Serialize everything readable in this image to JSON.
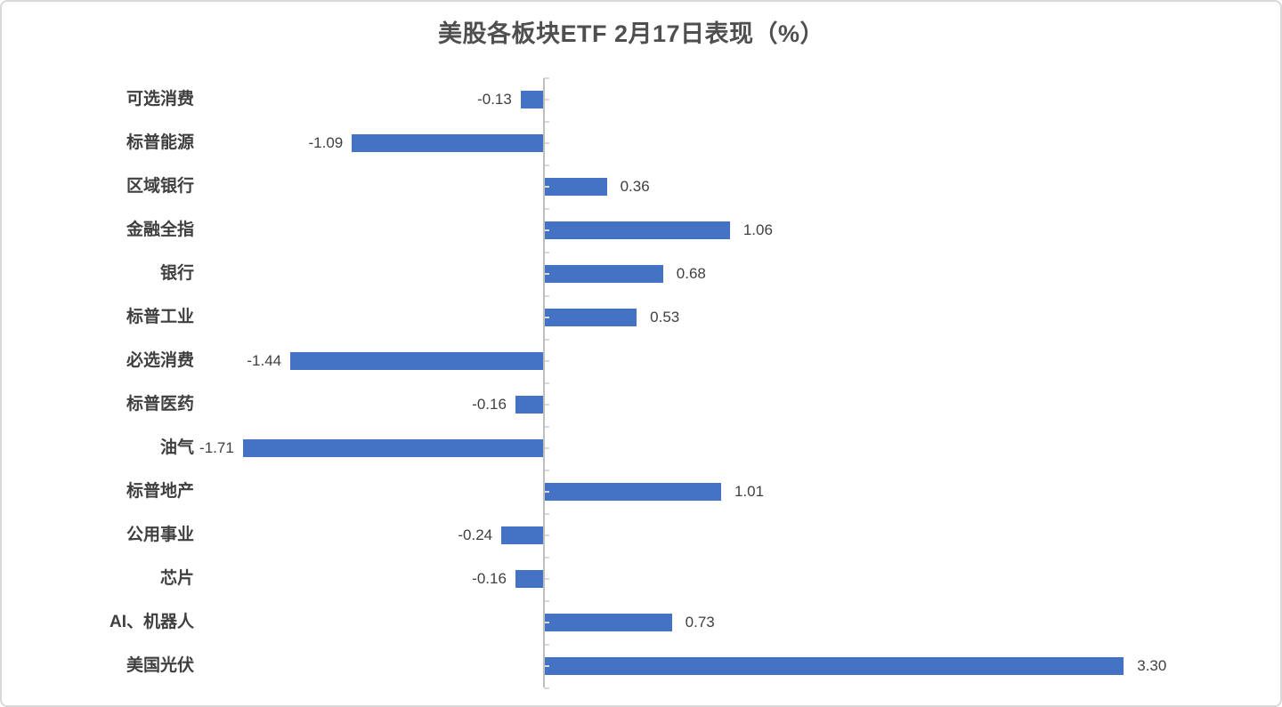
{
  "chart_data": {
    "type": "bar",
    "orientation": "horizontal",
    "title": "美股各板块ETF 2月17日表现（%）",
    "categories": [
      "可选消费",
      "标普能源",
      "区域银行",
      "金融全指",
      "银行",
      "标普工业",
      "必选消费",
      "标普医药",
      "油气",
      "标普地产",
      "公用事业",
      "芯片",
      "AI、机器人",
      "美国光伏"
    ],
    "values": [
      -0.13,
      -1.09,
      0.36,
      1.06,
      0.68,
      0.53,
      -1.44,
      -0.16,
      -1.71,
      1.01,
      -0.24,
      -0.16,
      0.73,
      3.3
    ],
    "value_labels": [
      "-0.13",
      "-1.09",
      "0.36",
      "1.06",
      "0.68",
      "0.53",
      "-1.44",
      "-0.16",
      "-1.71",
      "1.01",
      "-0.24",
      "-0.16",
      "0.73",
      "3.30"
    ],
    "xlabel": "",
    "ylabel": "",
    "x_range_hint": [
      -2.05,
      4.2
    ],
    "grid": "off",
    "legend": "none",
    "data_labels": "outside-end",
    "axis_ticks": "half-band-right-of-axis",
    "colors": {
      "bar": "#4472C4",
      "axis_line": "#bfbfbf",
      "tick": "#d9d9d9",
      "title_text": "#4f4f4f",
      "category_text": "#3f3f3f",
      "value_text": "#404040",
      "card_border": "#d9d9d9",
      "background": "#ffffff"
    }
  }
}
